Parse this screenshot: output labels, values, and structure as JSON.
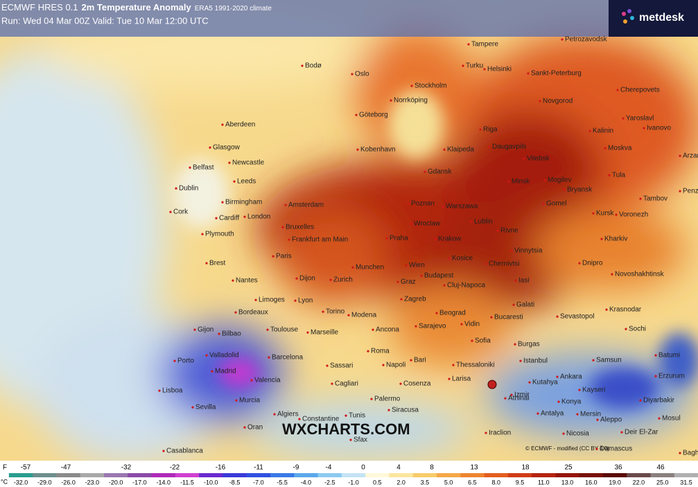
{
  "header": {
    "title_prefix": "ECMWF HRES 0.1",
    "title": "2m Temperature Anomaly",
    "climate": "ERA5 1991-2020 climate",
    "run": "Run: Wed 04 Mar 00Z Valid: Tue 10 Mar 12:00 UTC"
  },
  "logo": "metdesk",
  "watermark": "WXCHARTS.COM",
  "credit": "© ECMWF - modified (CC BY 4.0)",
  "cities": [
    "Bodø",
    "Petrozavodsk",
    "Tampere",
    "Turku",
    "Helsinki",
    "Sankt-Peterburg",
    "Oslo",
    "Stockholm",
    "Cherepovets",
    "Norrköping",
    "Novgorod",
    "Yaroslavl",
    "Ivanovo",
    "Göteborg",
    "Aberdeen",
    "Riga",
    "Kalinin",
    "Glasgow",
    "Klaipeda",
    "Daugavpils",
    "Moskva",
    "Kobenhavn",
    "Arzamas",
    "Vitebsk",
    "Newcastle",
    "Belfast",
    "Gdansk",
    "Tula",
    "Minsk",
    "Mogilev",
    "Leeds",
    "Dublin",
    "Bryansk",
    "Penza",
    "Tambov",
    "Birmingham",
    "Amsterdam",
    "Poznan",
    "Warszawa",
    "Gomel",
    "Kursk",
    "Voronezh",
    "Cork",
    "Cardiff",
    "London",
    "Bruxelles",
    "Wroclaw",
    "Lublin",
    "Rivne",
    "Plymouth",
    "Frankfurt am Main",
    "Praha",
    "Krakow",
    "Kharkiv",
    "Paris",
    "Kosice",
    "Vinnytsia",
    "Chernivtsi",
    "Dnipro",
    "Brest",
    "Munchen",
    "Wien",
    "Novoshakhtinsk",
    "Budapest",
    "Iasi",
    "Nantes",
    "Dijon",
    "Zurich",
    "Graz",
    "Cluj-Napoca",
    "Limoges",
    "Lyon",
    "Zagreb",
    "Galati",
    "Krasnodar",
    "Bordeaux",
    "Torino",
    "Modena",
    "Beograd",
    "Bucaresti",
    "Sevastopol",
    "Sochi",
    "Sarajevo",
    "Vidin",
    "Toulouse",
    "Marseille",
    "Gijon",
    "Bilbao",
    "Sofia",
    "Burgas",
    "Ancona",
    "Batumi",
    "Roma",
    "Samsun",
    "Porto",
    "Valladolid",
    "Barcelona",
    "Bari",
    "Istanbul",
    "Sassari",
    "Napoli",
    "Thessaloniki",
    "Larisa",
    "Erzurum",
    "Ankara",
    "Madrid",
    "Kutahya",
    "Valencia",
    "Cagliari",
    "Cosenza",
    "Kayseri",
    "Lisboa",
    "Izmir",
    "Konya",
    "Diyarbakir",
    "Palermo",
    "Sevilla",
    "Murcia",
    "Athinai",
    "Siracusa",
    "Antalya",
    "Mersin",
    "Algiers",
    "Constantine",
    "Tunis",
    "Aleppo",
    "Mosul",
    "Oran",
    "Sfax",
    "Iraclion",
    "Nicosia",
    "Deir El-Zar",
    "Casablanca",
    "Damascus",
    "Baghdad"
  ],
  "legend": {
    "f_unit": "F",
    "f_ticks": [
      "-57",
      "-47",
      "-32",
      "-22",
      "-16",
      "-11",
      "-9",
      "-4",
      "0",
      "4",
      "8",
      "13",
      "18",
      "25",
      "36",
      "46"
    ],
    "c_unit": "°C",
    "c_ticks": [
      "-32.0",
      "-29.0",
      "-26.0",
      "-23.0",
      "-20.0",
      "-17.0",
      "-14.0",
      "-11.5",
      "-10.0",
      "-8.5",
      "-7.0",
      "-5.5",
      "-4.0",
      "-2.5",
      "-1.0",
      "0.5",
      "2.0",
      "3.5",
      "5.0",
      "6.5",
      "8.0",
      "9.5",
      "11.0",
      "13.0",
      "16.0",
      "19.0",
      "22.0",
      "25.0",
      "31.5"
    ]
  }
}
